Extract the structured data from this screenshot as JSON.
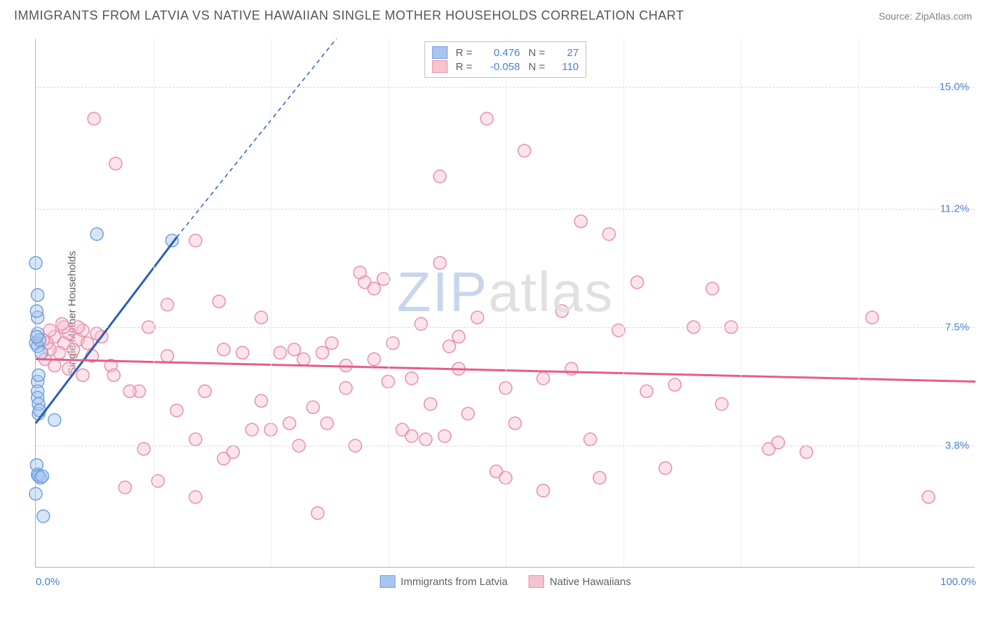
{
  "title": "IMMIGRANTS FROM LATVIA VS NATIVE HAWAIIAN SINGLE MOTHER HOUSEHOLDS CORRELATION CHART",
  "source": "Source: ZipAtlas.com",
  "y_axis_label": "Single Mother Households",
  "chart": {
    "type": "scatter",
    "xlim": [
      0,
      100
    ],
    "ylim": [
      0,
      16.5
    ],
    "y_ticks": [
      3.8,
      7.5,
      11.2,
      15.0
    ],
    "x_ticks_visible": [
      0.0,
      100.0
    ],
    "x_minor_gridlines": [
      12.5,
      25,
      37.5,
      50,
      62.5,
      75,
      87.5
    ],
    "background_color": "#ffffff",
    "grid_color": "#d8d8d8",
    "axis_color": "#b0b0b0",
    "tick_label_color": "#4a7fd8",
    "marker_radius": 9,
    "marker_opacity": 0.45,
    "line_width": 3,
    "series": [
      {
        "name": "Immigrants from Latvia",
        "fill_color": "#a9c5ee",
        "stroke_color": "#6f9fe0",
        "line_color": "#2b5fb8",
        "R": "0.476",
        "N": "27",
        "trendline": {
          "x1": 0,
          "y1": 4.5,
          "x2": 15,
          "y2": 10.3,
          "dashed_ext": {
            "x2": 32,
            "y2": 16.5
          }
        },
        "points": [
          [
            0.0,
            9.5
          ],
          [
            0.2,
            8.5
          ],
          [
            0.2,
            7.8
          ],
          [
            0.2,
            7.3
          ],
          [
            0.0,
            7.0
          ],
          [
            0.2,
            6.9
          ],
          [
            0.2,
            5.8
          ],
          [
            0.2,
            5.5
          ],
          [
            0.2,
            5.3
          ],
          [
            0.3,
            4.8
          ],
          [
            0.1,
            3.2
          ],
          [
            0.2,
            2.9
          ],
          [
            0.3,
            2.85
          ],
          [
            0.5,
            2.8
          ],
          [
            0.7,
            2.85
          ],
          [
            0.0,
            2.3
          ],
          [
            0.8,
            1.6
          ],
          [
            2.0,
            4.6
          ],
          [
            6.5,
            10.4
          ],
          [
            14.5,
            10.2
          ],
          [
            0.4,
            7.1
          ],
          [
            0.6,
            6.7
          ],
          [
            0.3,
            6.0
          ],
          [
            0.3,
            5.1
          ],
          [
            0.4,
            4.9
          ],
          [
            0.1,
            7.2
          ],
          [
            0.1,
            8.0
          ]
        ]
      },
      {
        "name": "Native Hawaiians",
        "fill_color": "#f6c3d1",
        "stroke_color": "#ea8fab",
        "line_color": "#e85b8a",
        "R": "-0.058",
        "N": "110",
        "trendline": {
          "x1": 0,
          "y1": 6.5,
          "x2": 100,
          "y2": 5.8
        },
        "points": [
          [
            6.2,
            14.0
          ],
          [
            48.0,
            14.0
          ],
          [
            8.5,
            12.6
          ],
          [
            43.0,
            12.2
          ],
          [
            52.0,
            13.0
          ],
          [
            58.0,
            10.8
          ],
          [
            61.0,
            10.4
          ],
          [
            17.0,
            10.2
          ],
          [
            2.0,
            7.2
          ],
          [
            3.5,
            7.3
          ],
          [
            4.5,
            7.1
          ],
          [
            5.0,
            7.4
          ],
          [
            5.5,
            7.0
          ],
          [
            3.0,
            7.0
          ],
          [
            2.5,
            6.7
          ],
          [
            4.0,
            6.8
          ],
          [
            6.0,
            6.6
          ],
          [
            7.0,
            7.2
          ],
          [
            3.0,
            7.5
          ],
          [
            1.5,
            7.4
          ],
          [
            12.0,
            7.5
          ],
          [
            14.0,
            8.2
          ],
          [
            19.5,
            8.3
          ],
          [
            11.0,
            5.5
          ],
          [
            14.0,
            6.6
          ],
          [
            18.0,
            5.5
          ],
          [
            17.0,
            4.0
          ],
          [
            17.0,
            2.2
          ],
          [
            20.0,
            3.4
          ],
          [
            21.0,
            3.6
          ],
          [
            22.0,
            6.7
          ],
          [
            23.0,
            4.3
          ],
          [
            24.0,
            7.8
          ],
          [
            25.0,
            4.3
          ],
          [
            26.0,
            6.7
          ],
          [
            27.0,
            4.5
          ],
          [
            28.0,
            3.8
          ],
          [
            29.5,
            5.0
          ],
          [
            30.0,
            1.7
          ],
          [
            31.0,
            4.5
          ],
          [
            33.0,
            6.3
          ],
          [
            33.0,
            5.6
          ],
          [
            34.0,
            3.8
          ],
          [
            35.0,
            8.9
          ],
          [
            36.0,
            6.5
          ],
          [
            36.0,
            8.7
          ],
          [
            37.0,
            9.0
          ],
          [
            38.0,
            7.0
          ],
          [
            39.0,
            4.3
          ],
          [
            40.0,
            5.9
          ],
          [
            40.0,
            4.1
          ],
          [
            41.0,
            7.6
          ],
          [
            42.0,
            5.1
          ],
          [
            43.0,
            9.5
          ],
          [
            44.0,
            6.9
          ],
          [
            45.0,
            6.2
          ],
          [
            45.0,
            7.2
          ],
          [
            46.0,
            4.8
          ],
          [
            47.0,
            7.8
          ],
          [
            49.0,
            3.0
          ],
          [
            50.0,
            5.6
          ],
          [
            50.0,
            2.8
          ],
          [
            51.0,
            4.5
          ],
          [
            54.0,
            5.9
          ],
          [
            54.0,
            2.4
          ],
          [
            56.0,
            8.0
          ],
          [
            59.0,
            4.0
          ],
          [
            60.0,
            2.8
          ],
          [
            64.0,
            8.9
          ],
          [
            65.0,
            5.5
          ],
          [
            67.0,
            3.1
          ],
          [
            72.0,
            8.7
          ],
          [
            73.0,
            5.1
          ],
          [
            74.0,
            7.5
          ],
          [
            78.0,
            3.7
          ],
          [
            79.0,
            3.9
          ],
          [
            82.0,
            3.6
          ],
          [
            70.0,
            7.5
          ],
          [
            89.0,
            7.8
          ],
          [
            95.0,
            2.2
          ],
          [
            9.5,
            2.5
          ],
          [
            10.0,
            5.5
          ],
          [
            11.5,
            3.7
          ],
          [
            13.0,
            2.7
          ],
          [
            15.0,
            4.9
          ],
          [
            8.0,
            6.3
          ],
          [
            8.3,
            6.0
          ],
          [
            20.0,
            6.8
          ],
          [
            24.0,
            5.2
          ],
          [
            27.5,
            6.8
          ],
          [
            28.5,
            6.5
          ],
          [
            30.5,
            6.7
          ],
          [
            31.5,
            7.0
          ],
          [
            37.5,
            5.8
          ],
          [
            41.5,
            4.0
          ],
          [
            43.5,
            4.1
          ],
          [
            57.0,
            6.2
          ],
          [
            62.0,
            7.4
          ],
          [
            68.0,
            5.7
          ],
          [
            34.5,
            9.2
          ],
          [
            1.0,
            6.5
          ],
          [
            2.0,
            6.3
          ],
          [
            3.5,
            6.2
          ],
          [
            5.0,
            6.0
          ],
          [
            1.5,
            6.8
          ],
          [
            4.5,
            7.5
          ],
          [
            6.5,
            7.3
          ],
          [
            2.8,
            7.6
          ],
          [
            1.2,
            7.0
          ],
          [
            0.8,
            7.1
          ]
        ]
      }
    ]
  },
  "watermark": {
    "pre": "ZIP",
    "post": "atlas"
  }
}
